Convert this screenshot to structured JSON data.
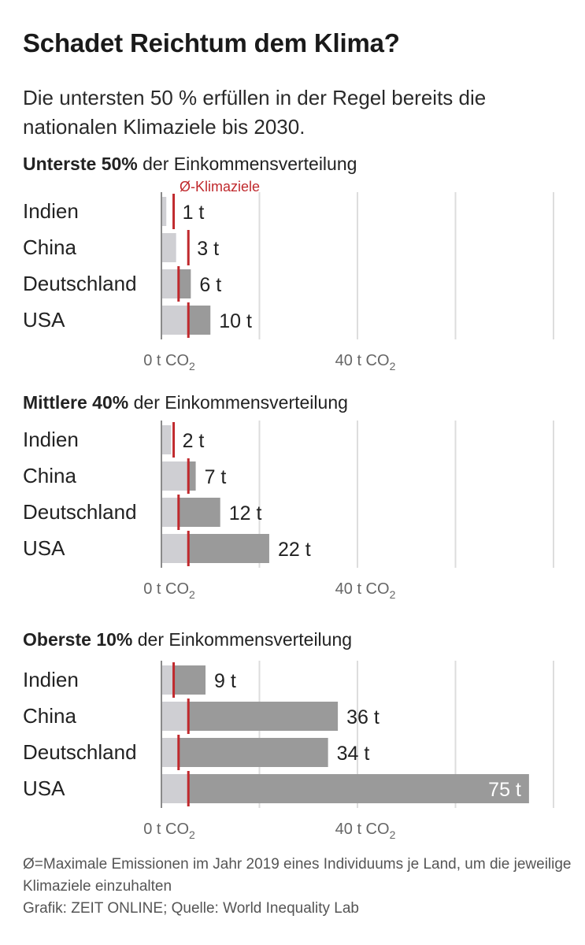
{
  "title": "Schadet Reichtum dem Klima?",
  "subtitle": "Die untersten 50 % erfüllen in der Regel bereits die nationalen Klimaziele bis 2030.",
  "legend": {
    "target_label": "Ø-Klimaziele"
  },
  "chart_data": [
    {
      "type": "bar",
      "title_bold": "Unterste 50%",
      "title_rest": " der Einkommensverteilung",
      "categories": [
        "Indien",
        "China",
        "Deutschland",
        "USA"
      ],
      "values": [
        1,
        3,
        6,
        10
      ],
      "value_labels": [
        "1 t",
        "3 t",
        "6 t",
        "10 t"
      ],
      "targets": [
        2.5,
        5.5,
        3.5,
        5.5
      ],
      "unit": "t CO2",
      "xlim": [
        0,
        80
      ],
      "xticks": [
        {
          "value": 0,
          "label": "0 t CO"
        },
        {
          "value": 40,
          "label": "40 t CO"
        }
      ],
      "tick_subscript": "2"
    },
    {
      "type": "bar",
      "title_bold": "Mittlere 40%",
      "title_rest": " der Einkommensverteilung",
      "categories": [
        "Indien",
        "China",
        "Deutschland",
        "USA"
      ],
      "values": [
        2,
        7,
        12,
        22
      ],
      "value_labels": [
        "2 t",
        "7 t",
        "12 t",
        "22 t"
      ],
      "targets": [
        2.5,
        5.5,
        3.5,
        5.5
      ],
      "unit": "t CO2",
      "xlim": [
        0,
        80
      ],
      "xticks": [
        {
          "value": 0,
          "label": "0 t CO"
        },
        {
          "value": 40,
          "label": "40 t CO"
        }
      ],
      "tick_subscript": "2"
    },
    {
      "type": "bar",
      "title_bold": "Oberste 10%",
      "title_rest": " der Einkommensverteilung",
      "categories": [
        "Indien",
        "China",
        "Deutschland",
        "USA"
      ],
      "values": [
        9,
        36,
        34,
        75
      ],
      "value_labels": [
        "9 t",
        "36 t",
        "34 t",
        "75 t"
      ],
      "targets": [
        2.5,
        5.5,
        3.5,
        5.5
      ],
      "unit": "t CO2",
      "xlim": [
        0,
        80
      ],
      "xticks": [
        {
          "value": 0,
          "label": "0 t CO"
        },
        {
          "value": 40,
          "label": "40 t CO"
        }
      ],
      "tick_subscript": "2"
    }
  ],
  "footer": {
    "note": "Ø=Maximale Emissionen im Jahr 2019 eines Individuums je Land, um die jeweilige Klimaziele einzuhalten",
    "credit": "Grafik: ZEIT ONLINE; Quelle: World Inequality Lab"
  },
  "colors": {
    "bar_below_target": "#cfcfd3",
    "bar_above_target": "#9a9a9a",
    "target": "#c0292d",
    "gridline": "#dddddd",
    "axis": "#8a8a8a",
    "label": "#222222",
    "tick": "#666666"
  }
}
